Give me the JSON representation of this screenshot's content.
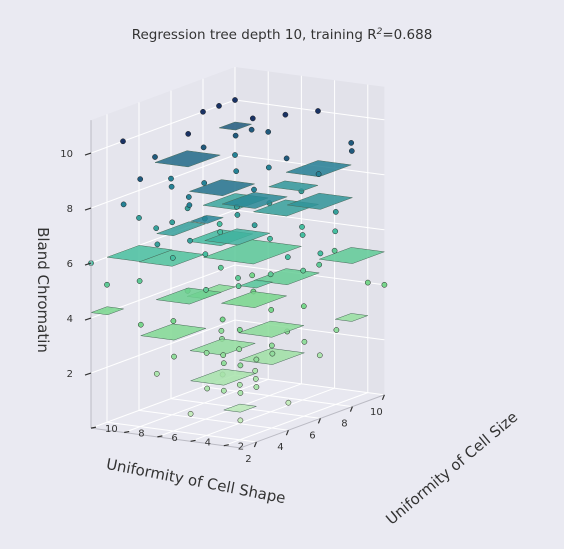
{
  "chart_data": {
    "type": "scatter-3d",
    "title": "Regression tree depth 10, training R",
    "title_sup": "2",
    "title_suffix": "=0.688",
    "xlabel": "Uniformity of Cell Shape",
    "ylabel": "Uniformity of Cell Size",
    "zlabel": "Bland Chromatin",
    "xlim": [
      1,
      10
    ],
    "ylim": [
      1,
      10
    ],
    "zlim": [
      1,
      10
    ],
    "x_ticks": [
      "2",
      "4",
      "6",
      "8",
      "10"
    ],
    "y_ticks": [
      "2",
      "4",
      "6",
      "8",
      "10"
    ],
    "z_ticks": [
      "2",
      "4",
      "6",
      "8",
      "10"
    ],
    "grid": true,
    "colormap": "viridis-green",
    "points": [
      [
        1,
        1,
        1
      ],
      [
        1,
        2,
        2
      ],
      [
        2,
        1,
        2
      ],
      [
        1,
        1,
        3
      ],
      [
        2,
        2,
        2
      ],
      [
        1,
        3,
        2
      ],
      [
        3,
        1,
        3
      ],
      [
        2,
        3,
        3
      ],
      [
        3,
        2,
        2
      ],
      [
        1,
        1,
        2
      ],
      [
        2,
        1,
        3
      ],
      [
        3,
        3,
        3
      ],
      [
        1,
        2,
        3
      ],
      [
        4,
        2,
        3
      ],
      [
        2,
        4,
        3
      ],
      [
        3,
        4,
        4
      ],
      [
        4,
        4,
        5
      ],
      [
        5,
        3,
        4
      ],
      [
        3,
        5,
        5
      ],
      [
        5,
        5,
        5
      ],
      [
        6,
        4,
        5
      ],
      [
        4,
        6,
        6
      ],
      [
        6,
        6,
        7
      ],
      [
        7,
        5,
        6
      ],
      [
        5,
        7,
        7
      ],
      [
        8,
        6,
        7
      ],
      [
        6,
        8,
        8
      ],
      [
        8,
        8,
        8
      ],
      [
        9,
        7,
        8
      ],
      [
        7,
        9,
        9
      ],
      [
        10,
        10,
        10
      ],
      [
        10,
        8,
        9
      ],
      [
        8,
        10,
        10
      ],
      [
        10,
        6,
        7
      ],
      [
        6,
        10,
        8
      ],
      [
        9,
        9,
        9
      ],
      [
        10,
        10,
        8
      ],
      [
        10,
        4,
        5
      ],
      [
        4,
        10,
        7
      ],
      [
        7,
        7,
        7
      ],
      [
        3,
        7,
        6
      ],
      [
        7,
        3,
        5
      ],
      [
        2,
        6,
        4
      ],
      [
        6,
        2,
        4
      ],
      [
        5,
        9,
        8
      ],
      [
        9,
        5,
        6
      ],
      [
        10,
        2,
        4
      ],
      [
        2,
        10,
        5
      ],
      [
        8,
        3,
        5
      ],
      [
        3,
        8,
        7
      ],
      [
        1,
        5,
        3
      ],
      [
        5,
        1,
        3
      ],
      [
        1,
        7,
        4
      ],
      [
        7,
        1,
        3
      ],
      [
        1,
        10,
        6
      ],
      [
        10,
        1,
        4
      ],
      [
        4,
        8,
        7
      ],
      [
        8,
        4,
        6
      ],
      [
        6,
        9,
        7
      ],
      [
        9,
        3,
        6
      ],
      [
        2,
        5,
        7
      ],
      [
        5,
        2,
        6
      ],
      [
        3,
        6,
        8
      ],
      [
        6,
        3,
        3
      ],
      [
        4,
        3,
        2
      ],
      [
        3,
        4,
        2
      ],
      [
        2,
        2,
        4
      ],
      [
        4,
        1,
        1
      ],
      [
        1,
        4,
        1
      ],
      [
        2,
        7,
        2
      ],
      [
        7,
        2,
        2
      ],
      [
        9,
        10,
        10
      ],
      [
        10,
        9,
        9
      ],
      [
        8,
        9,
        6
      ],
      [
        9,
        8,
        4
      ],
      [
        5,
        10,
        9
      ],
      [
        10,
        5,
        10
      ],
      [
        6,
        7,
        5
      ],
      [
        7,
        6,
        4
      ],
      [
        4,
        5,
        3
      ],
      [
        5,
        4,
        7
      ],
      [
        3,
        9,
        5
      ],
      [
        9,
        4,
        8
      ],
      [
        2,
        8,
        9
      ],
      [
        8,
        2,
        7
      ],
      [
        6,
        5,
        8
      ],
      [
        5,
        6,
        3
      ],
      [
        4,
        7,
        8
      ],
      [
        7,
        4,
        9
      ],
      [
        1,
        6,
        7
      ],
      [
        6,
        1,
        6
      ],
      [
        3,
        10,
        10
      ],
      [
        10,
        3,
        9
      ],
      [
        8,
        7,
        10
      ],
      [
        7,
        8,
        6
      ],
      [
        9,
        6,
        10
      ],
      [
        6,
        9,
        4
      ],
      [
        2,
        9,
        8
      ],
      [
        9,
        2,
        9
      ],
      [
        5,
        8,
        10
      ]
    ],
    "leaf_boxes": [
      {
        "x": [
          1,
          2
        ],
        "y": [
          1,
          2
        ],
        "z": 1.3,
        "value": 1.5
      },
      {
        "x": [
          1,
          3
        ],
        "y": [
          2,
          4
        ],
        "z": 2.2,
        "value": 2.2
      },
      {
        "x": [
          3,
          5
        ],
        "y": [
          1,
          3
        ],
        "z": 2.6,
        "value": 2.5
      },
      {
        "x": [
          2,
          4
        ],
        "y": [
          3,
          5
        ],
        "z": 3.0,
        "value": 3.0
      },
      {
        "x": [
          4,
          6
        ],
        "y": [
          2,
          4
        ],
        "z": 3.3,
        "value": 3.3
      },
      {
        "x": [
          1,
          3
        ],
        "y": [
          5,
          7
        ],
        "z": 3.6,
        "value": 3.6
      },
      {
        "x": [
          5,
          7
        ],
        "y": [
          4,
          6
        ],
        "z": 4.0,
        "value": 4.0
      },
      {
        "x": [
          3,
          5
        ],
        "y": [
          6,
          8
        ],
        "z": 4.4,
        "value": 4.5
      },
      {
        "x": [
          6,
          8
        ],
        "y": [
          3,
          5
        ],
        "z": 4.7,
        "value": 4.8
      },
      {
        "x": [
          7,
          10
        ],
        "y": [
          6,
          9
        ],
        "z": 5.0,
        "value": 5.2
      },
      {
        "x": [
          4,
          6
        ],
        "y": [
          8,
          10
        ],
        "z": 5.4,
        "value": 5.6
      },
      {
        "x": [
          8,
          10
        ],
        "y": [
          1,
          3
        ],
        "z": 5.2,
        "value": 5.0
      },
      {
        "x": [
          6,
          8
        ],
        "y": [
          7,
          9
        ],
        "z": 5.8,
        "value": 6.1
      },
      {
        "x": [
          5,
          7
        ],
        "y": [
          5,
          7
        ],
        "z": 6.2,
        "value": 6.4
      },
      {
        "x": [
          8,
          10
        ],
        "y": [
          8,
          10
        ],
        "z": 6.6,
        "value": 6.8
      },
      {
        "x": [
          2,
          4
        ],
        "y": [
          8,
          10
        ],
        "z": 6.0,
        "value": 5.9
      },
      {
        "x": [
          7,
          9
        ],
        "y": [
          4,
          6
        ],
        "z": 6.9,
        "value": 7.0
      },
      {
        "x": [
          9,
          10
        ],
        "y": [
          5,
          7
        ],
        "z": 7.3,
        "value": 7.3
      },
      {
        "x": [
          6,
          8
        ],
        "y": [
          1,
          3
        ],
        "z": 7.6,
        "value": 7.4
      },
      {
        "x": [
          4,
          6
        ],
        "y": [
          3,
          5
        ],
        "z": 7.9,
        "value": 7.8
      },
      {
        "x": [
          8,
          10
        ],
        "y": [
          3,
          5
        ],
        "z": 8.2,
        "value": 8.1
      },
      {
        "x": [
          3,
          5
        ],
        "y": [
          4,
          6
        ],
        "z": 8.5,
        "value": 8.4
      },
      {
        "x": [
          5,
          7
        ],
        "y": [
          8,
          10
        ],
        "z": 8.8,
        "value": 8.6
      },
      {
        "x": [
          9,
          10
        ],
        "y": [
          9,
          10
        ],
        "z": 9.2,
        "value": 9.0
      },
      {
        "x": [
          1,
          2
        ],
        "y": [
          9,
          10
        ],
        "z": 4.2,
        "value": 4.0
      },
      {
        "x": [
          2,
          3
        ],
        "y": [
          1,
          2
        ],
        "z": 5.6,
        "value": 5.4
      },
      {
        "x": [
          1,
          2
        ],
        "y": [
          3,
          4
        ],
        "z": 8.0,
        "value": 8.0
      },
      {
        "x": [
          7,
          9
        ],
        "y": [
          9,
          10
        ],
        "z": 3.5,
        "value": 3.4
      },
      {
        "x": [
          9,
          10
        ],
        "y": [
          2,
          3
        ],
        "z": 2.8,
        "value": 2.8
      },
      {
        "x": [
          2,
          4
        ],
        "y": [
          6,
          7
        ],
        "z": 7.1,
        "value": 7.0
      }
    ]
  }
}
